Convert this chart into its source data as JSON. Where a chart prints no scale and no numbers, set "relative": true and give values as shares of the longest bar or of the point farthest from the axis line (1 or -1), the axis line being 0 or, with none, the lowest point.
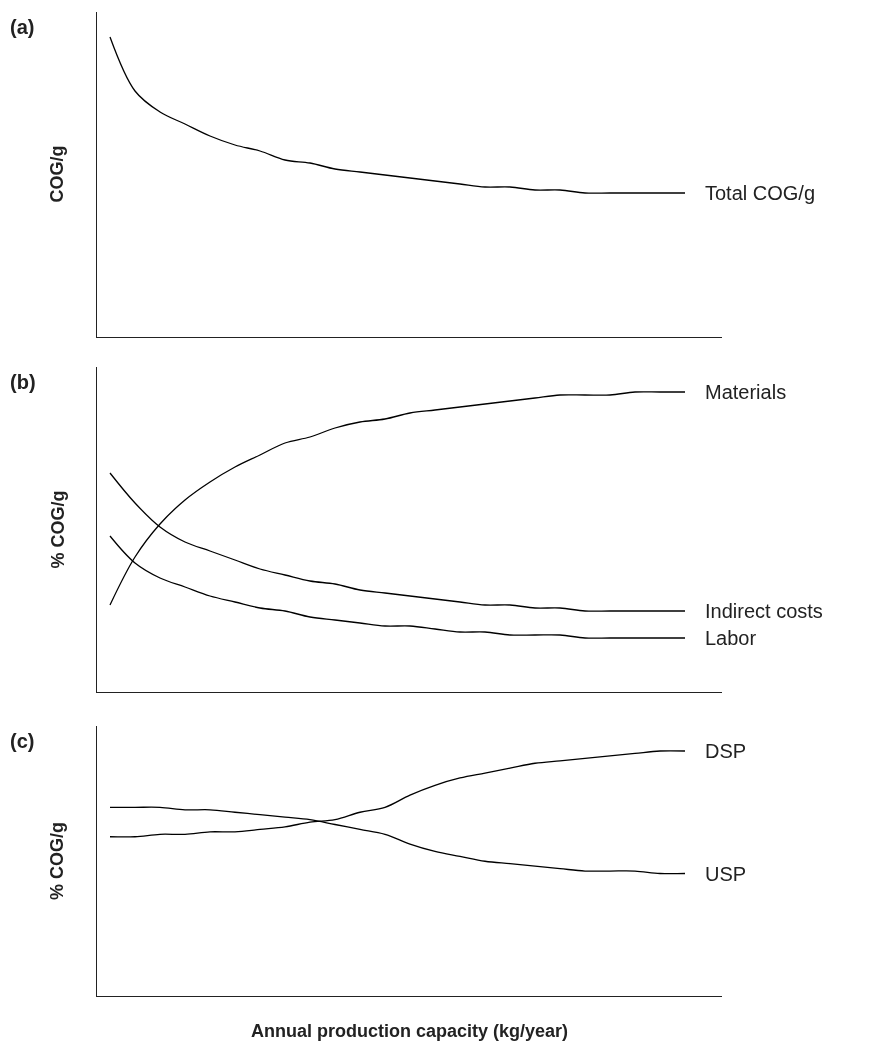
{
  "chart_data": [
    {
      "type": "line",
      "title": "(a)",
      "ylabel": "COG/g",
      "relative": true,
      "categories": [
        null,
        null,
        null,
        null,
        null,
        null,
        null,
        null,
        null,
        null,
        null,
        null,
        null,
        null,
        null,
        null,
        null,
        null,
        null,
        null,
        null,
        null,
        null,
        null
      ],
      "series": [
        {
          "name": "Total COG/g",
          "color": "#000000",
          "values": [
            1.0,
            0.82,
            0.75,
            0.71,
            0.67,
            0.64,
            0.62,
            0.59,
            0.58,
            0.56,
            0.55,
            0.54,
            0.53,
            0.52,
            0.51,
            0.5,
            0.5,
            0.49,
            0.49,
            0.48,
            0.48,
            0.48,
            0.48,
            0.48
          ]
        }
      ]
    },
    {
      "type": "line",
      "title": "(b)",
      "ylabel": "% COG/g",
      "relative": true,
      "categories": [
        null,
        null,
        null,
        null,
        null,
        null,
        null,
        null,
        null,
        null,
        null,
        null,
        null,
        null,
        null,
        null,
        null,
        null,
        null,
        null,
        null,
        null,
        null,
        null
      ],
      "series": [
        {
          "name": "Materials",
          "color": "#000000",
          "values": [
            0.29,
            0.45,
            0.56,
            0.64,
            0.7,
            0.75,
            0.79,
            0.83,
            0.85,
            0.88,
            0.9,
            0.91,
            0.93,
            0.94,
            0.95,
            0.96,
            0.97,
            0.98,
            0.99,
            0.99,
            0.99,
            1.0,
            1.0,
            1.0
          ]
        },
        {
          "name": "Indirect costs",
          "color": "#000000",
          "values": [
            0.73,
            0.63,
            0.55,
            0.5,
            0.47,
            0.44,
            0.41,
            0.39,
            0.37,
            0.36,
            0.34,
            0.33,
            0.32,
            0.31,
            0.3,
            0.29,
            0.29,
            0.28,
            0.28,
            0.27,
            0.27,
            0.27,
            0.27,
            0.27
          ]
        },
        {
          "name": "Labor",
          "color": "#000000",
          "values": [
            0.52,
            0.43,
            0.38,
            0.35,
            0.32,
            0.3,
            0.28,
            0.27,
            0.25,
            0.24,
            0.23,
            0.22,
            0.22,
            0.21,
            0.2,
            0.2,
            0.19,
            0.19,
            0.19,
            0.18,
            0.18,
            0.18,
            0.18,
            0.18
          ]
        }
      ]
    },
    {
      "type": "line",
      "title": "(c)",
      "ylabel": "% COG/g",
      "xlabel": "Annual production capacity (kg/year)",
      "relative": true,
      "categories": [
        null,
        null,
        null,
        null,
        null,
        null,
        null,
        null,
        null,
        null,
        null,
        null,
        null,
        null,
        null,
        null,
        null,
        null,
        null,
        null,
        null,
        null,
        null,
        null
      ],
      "series": [
        {
          "name": "DSP",
          "color": "#000000",
          "values": [
            0.65,
            0.65,
            0.66,
            0.66,
            0.67,
            0.67,
            0.68,
            0.69,
            0.71,
            0.72,
            0.75,
            0.77,
            0.82,
            0.86,
            0.89,
            0.91,
            0.93,
            0.95,
            0.96,
            0.97,
            0.98,
            0.99,
            1.0,
            1.0
          ]
        },
        {
          "name": "USP",
          "color": "#000000",
          "values": [
            0.77,
            0.77,
            0.77,
            0.76,
            0.76,
            0.75,
            0.74,
            0.73,
            0.72,
            0.7,
            0.68,
            0.66,
            0.62,
            0.59,
            0.57,
            0.55,
            0.54,
            0.53,
            0.52,
            0.51,
            0.51,
            0.51,
            0.5,
            0.5
          ]
        }
      ]
    }
  ]
}
